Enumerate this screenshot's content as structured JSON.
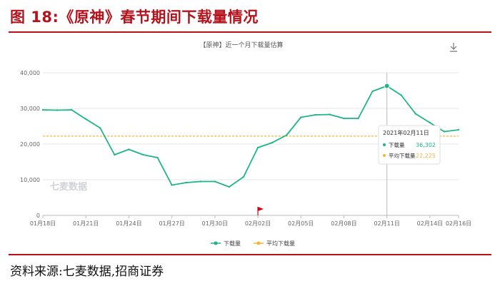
{
  "header": {
    "title": "图 18:《原神》春节期间下载量情况"
  },
  "footer": {
    "source": "资料来源:七麦数据,招商证券"
  },
  "icons": {
    "download": "download-icon",
    "flag": "red-flag-icon"
  },
  "colors": {
    "title": "#b5121b",
    "download_line": "#1fb38a",
    "average_line": "#f5b43c",
    "tooltip_value": "#1fb38a",
    "tooltip_avg_value": "#f5b43c"
  },
  "chart_data": {
    "type": "line",
    "title": "【原神】近一个月下载量估算",
    "watermark": "七麦数据",
    "x": [
      "01月18日",
      "01月19日",
      "01月20日",
      "01月21日",
      "01月22日",
      "01月23日",
      "01月24日",
      "01月25日",
      "01月26日",
      "01月27日",
      "01月28日",
      "01月29日",
      "01月30日",
      "01月31日",
      "02月01日",
      "02月02日",
      "02月03日",
      "02月04日",
      "02月05日",
      "02月06日",
      "02月07日",
      "02月08日",
      "02月09日",
      "02月10日",
      "02月11日",
      "02月12日",
      "02月13日",
      "02月14日",
      "02月15日",
      "02月16日"
    ],
    "x_tick_labels": [
      "01月18日",
      "01月21日",
      "01月24日",
      "01月27日",
      "01月30日",
      "02月02日",
      "02月05日",
      "02月08日",
      "02月11日",
      "02月14日",
      "02月16日"
    ],
    "ylim": [
      0,
      40000
    ],
    "y_ticks": [
      "0",
      "10,000",
      "20,000",
      "30,000",
      "40,000"
    ],
    "grid": "horizontal",
    "legend_position": "bottom",
    "series": [
      {
        "name": "下载量",
        "values": [
          29600,
          29500,
          29600,
          27000,
          24500,
          17000,
          18500,
          17000,
          16200,
          8500,
          9200,
          9500,
          9500,
          8000,
          10800,
          19000,
          20400,
          22500,
          27500,
          28200,
          28300,
          27200,
          27200,
          34800,
          36302,
          33700,
          28500,
          26000,
          23500,
          24000
        ]
      },
      {
        "name": "平均下载量",
        "values": [
          22225,
          22225,
          22225,
          22225,
          22225,
          22225,
          22225,
          22225,
          22225,
          22225,
          22225,
          22225,
          22225,
          22225,
          22225,
          22225,
          22225,
          22225,
          22225,
          22225,
          22225,
          22225,
          22225,
          22225,
          22225,
          22225,
          22225,
          22225,
          22225,
          22225
        ]
      }
    ],
    "tooltip": {
      "date": "2021年02月11日",
      "label1": "下载量",
      "value1": "36,302",
      "label2": "平均下载量",
      "value2": "22,225"
    }
  }
}
